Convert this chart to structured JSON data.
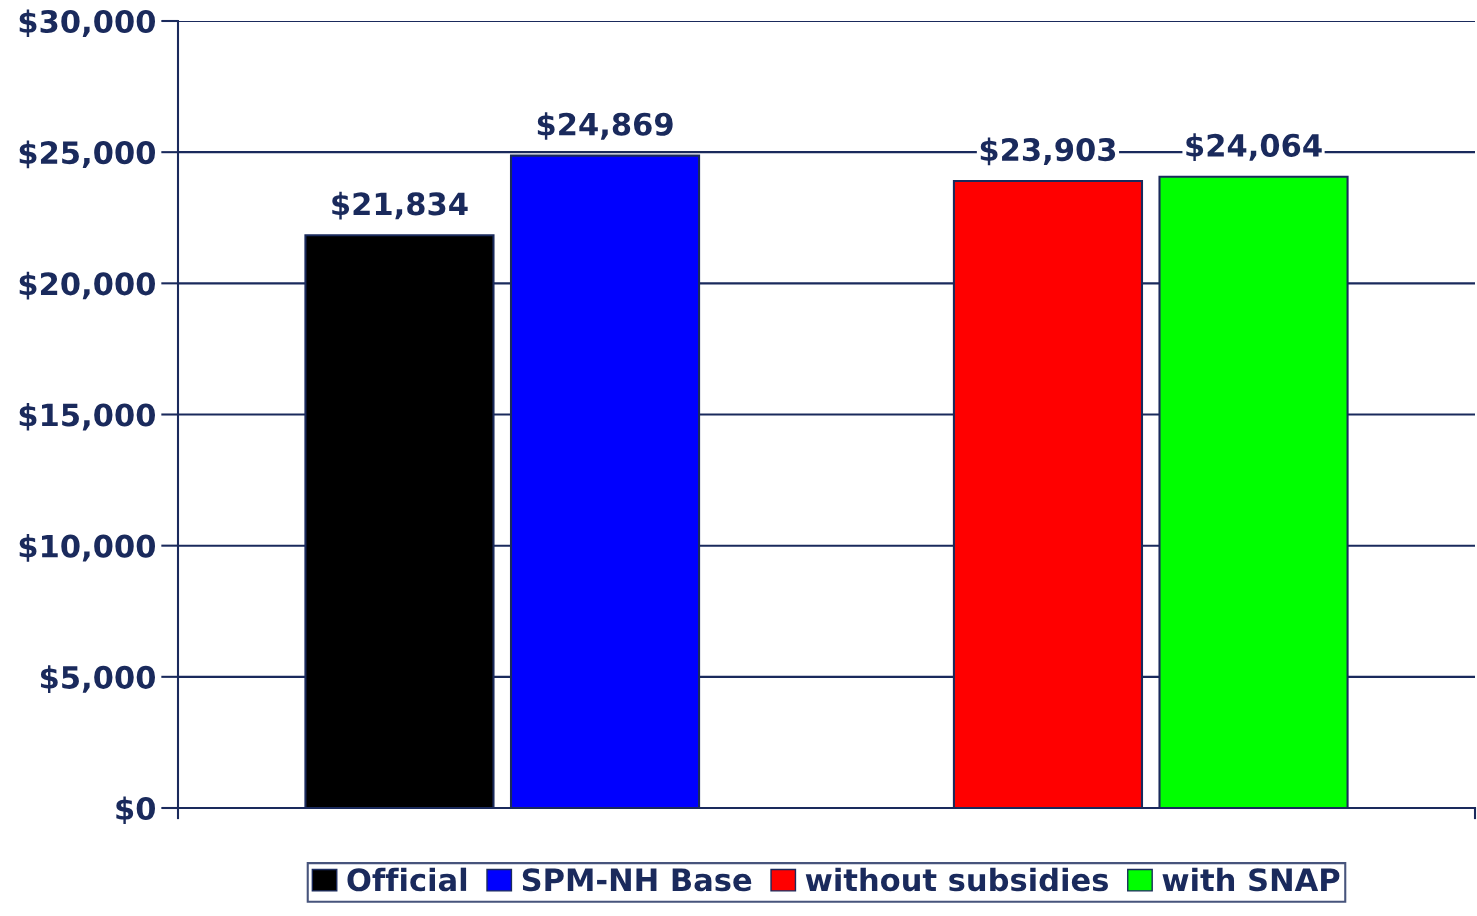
{
  "chart_data": {
    "type": "bar",
    "categories": [
      null,
      null
    ],
    "series": [
      {
        "name": "Official",
        "color": "#000000",
        "values": [
          21834,
          null
        ]
      },
      {
        "name": "SPM-NH Base",
        "color": "#0000ff",
        "values": [
          24869,
          null
        ]
      },
      {
        "name": "without subsidies",
        "color": "#ff0000",
        "values": [
          null,
          23903
        ]
      },
      {
        "name": "with SNAP",
        "color": "#00ff00",
        "values": [
          null,
          24064
        ]
      }
    ],
    "ylim": [
      0,
      30000
    ],
    "yticks": [
      {
        "value": 0,
        "label": "$0"
      },
      {
        "value": 5000,
        "label": "$5,000"
      },
      {
        "value": 10000,
        "label": "$10,000"
      },
      {
        "value": 15000,
        "label": "$15,000"
      },
      {
        "value": 20000,
        "label": "$20,000"
      },
      {
        "value": 25000,
        "label": "$25,000"
      },
      {
        "value": 30000,
        "label": "$30,000"
      }
    ],
    "value_labels": [
      [
        "$21,834",
        null
      ],
      [
        "$24,869",
        null
      ],
      [
        null,
        "$23,903"
      ],
      [
        null,
        "$24,064"
      ]
    ],
    "grid": "y",
    "legend": "bottom"
  }
}
